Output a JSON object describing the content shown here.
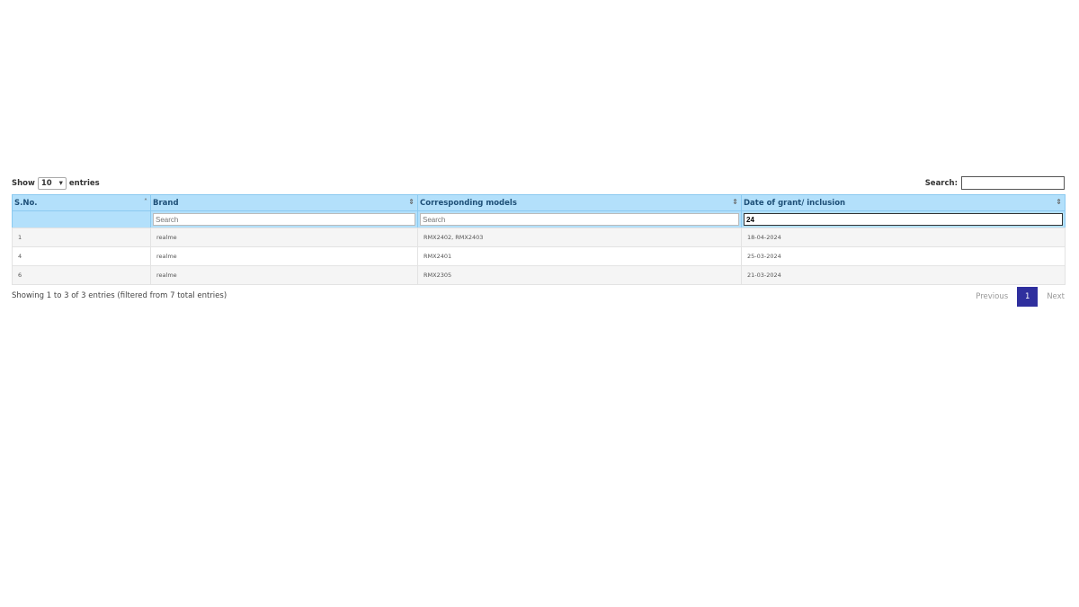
{
  "length_control": {
    "show": "Show",
    "value": "10",
    "entries": "entries"
  },
  "search": {
    "label": "Search:",
    "value": ""
  },
  "table": {
    "headers": [
      "S.No.",
      "Brand",
      "Corresponding models",
      "Date of grant/ inclusion"
    ],
    "filters": {
      "brand_placeholder": "Search",
      "models_placeholder": "Search",
      "date_value": "24"
    },
    "rows": [
      [
        "1",
        "realme",
        "RMX2402, RMX2403",
        "18-04-2024"
      ],
      [
        "4",
        "realme",
        "RMX2401",
        "25-03-2024"
      ],
      [
        "6",
        "realme",
        "RMX2305",
        "21-03-2024"
      ]
    ]
  },
  "info": "Showing 1 to 3 of 3 entries (filtered from 7 total entries)",
  "pagination": {
    "previous": "Previous",
    "current": "1",
    "next": "Next"
  },
  "colors": {
    "header_bg": "#b3e0fb",
    "active_page": "#2f2f9e"
  }
}
